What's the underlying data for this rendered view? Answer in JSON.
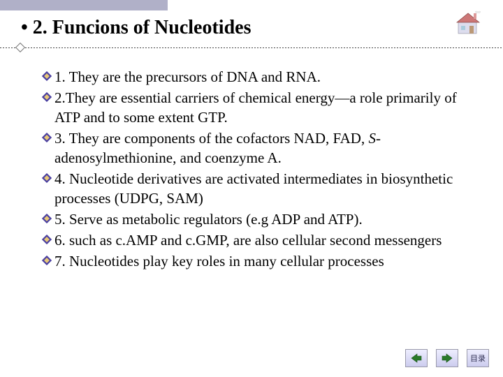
{
  "slide": {
    "title": "• 2. Funcions of Nucleotides"
  },
  "bullets": [
    {
      "text": "1. They are the precursors of DNA and RNA."
    },
    {
      "text_html": "2.They are essential carriers of chemical energy—a role primarily of ATP and to some extent GTP."
    },
    {
      "text_html": "3. They are components of the cofactors NAD, FAD, <span class=\"ital\">S</span>-adenosylmethionine, and coenzyme A."
    },
    {
      "text_html": "4. Nucleotide derivatives are activated intermediates in biosynthetic processes (UDPG, SAM)"
    },
    {
      "text": "5. Serve as metabolic regulators (e.g ADP and  ATP)."
    },
    {
      "text_html": "6. such as c.AMP and c.GMP, are also cellular second messengers"
    },
    {
      "text": "7.  Nucleotides play key roles in many cellular processes"
    }
  ],
  "nav": {
    "prev_label": "previous",
    "next_label": "next",
    "menu_label": "目录"
  },
  "colors": {
    "top_bar": "#b0b0c8",
    "bullet_outer": "#4a3fa0",
    "bullet_inner": "#e8c878",
    "nav_arrow": "#2a7a2a",
    "background": "#ffffff"
  }
}
